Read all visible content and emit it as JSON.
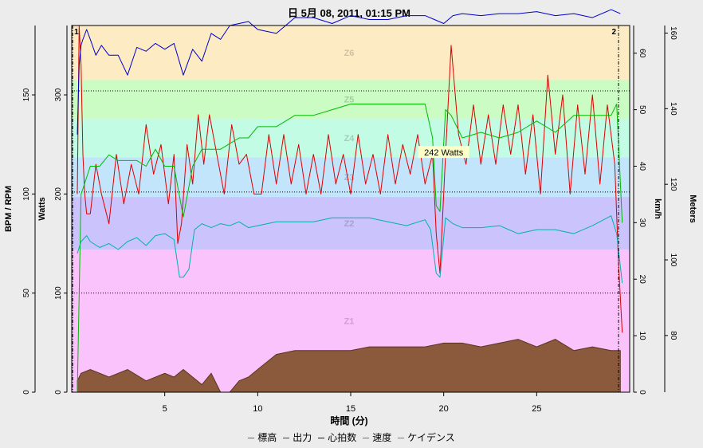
{
  "chart_data": {
    "type": "line",
    "title": "日 5月 08, 2011, 01:15 PM",
    "xlabel": "時間 (分)",
    "xlim": [
      0,
      30
    ],
    "x_ticks": [
      5,
      10,
      15,
      20,
      25
    ],
    "axes": {
      "bpm_rpm": {
        "label": "BPM / RPM",
        "ticks": [
          0,
          50,
          100,
          150
        ],
        "range": [
          0,
          185
        ]
      },
      "watts": {
        "label": "Watts",
        "ticks": [
          0,
          100,
          200,
          300
        ],
        "range": [
          0,
          370
        ]
      },
      "kmh": {
        "label": "km/h",
        "ticks": [
          0,
          10,
          20,
          30,
          40,
          50,
          60
        ],
        "range": [
          0,
          64.9
        ]
      },
      "meters": {
        "label": "Meters",
        "ticks": [
          80,
          100,
          120,
          140,
          160
        ],
        "range": [
          65,
          162
        ]
      }
    },
    "zones": [
      {
        "label": "Z1",
        "from": 0,
        "to": 144,
        "color": "#fbc3fc"
      },
      {
        "label": "Z2",
        "from": 144,
        "to": 197,
        "color": "#cbc3fc"
      },
      {
        "label": "Z3",
        "from": 197,
        "to": 237,
        "color": "#c3e5fc"
      },
      {
        "label": "Z4",
        "from": 237,
        "to": 276,
        "color": "#c3fce5"
      },
      {
        "label": "Z5",
        "from": 276,
        "to": 315,
        "color": "#cbfcc3"
      },
      {
        "label": "Z6",
        "from": 315,
        "to": 370,
        "color": "#fcebc3"
      }
    ],
    "reference_lines_watts": [
      100,
      202,
      304
    ],
    "interval_markers": [
      {
        "label": "1",
        "x": 0.05
      },
      {
        "label": "2",
        "x": 29.4
      }
    ],
    "annotation": {
      "text": "242 Watts",
      "x": 20.0,
      "y": 242
    },
    "grid": false,
    "legend_position": "bottom-center",
    "series": [
      {
        "name": "標高",
        "color": "#8b5a3c",
        "axis": "meters",
        "x": [
          0.3,
          0.5,
          1,
          2,
          3,
          4,
          5,
          5.5,
          6,
          6.5,
          7,
          7.5,
          8,
          8.5,
          9,
          9.5,
          10,
          11,
          12,
          13,
          14,
          15,
          16,
          17,
          18,
          19,
          20,
          21,
          22,
          23,
          24,
          25,
          26,
          27,
          28,
          29,
          29.5
        ],
        "y": [
          68,
          70,
          71,
          69,
          71,
          68,
          70,
          69,
          71,
          69,
          67,
          70,
          65,
          65,
          68,
          69,
          71,
          75,
          76,
          76,
          76,
          76,
          77,
          77,
          77,
          77,
          78,
          78,
          77,
          78,
          79,
          77,
          79,
          76,
          77,
          76,
          76
        ]
      },
      {
        "name": "出力",
        "color": "#dd0000",
        "axis": "watts",
        "x": [
          0.3,
          0.4,
          0.5,
          0.6,
          0.7,
          0.8,
          1,
          1.3,
          1.6,
          2,
          2.4,
          2.8,
          3.2,
          3.6,
          4,
          4.4,
          4.8,
          5.2,
          5.5,
          5.7,
          5.9,
          6.2,
          6.5,
          6.8,
          7.1,
          7.4,
          7.8,
          8.2,
          8.6,
          9,
          9.4,
          9.8,
          10.2,
          10.6,
          11,
          11.4,
          11.8,
          12.2,
          12.6,
          13,
          13.4,
          13.8,
          14.2,
          14.6,
          15,
          15.4,
          15.8,
          16.2,
          16.6,
          17,
          17.4,
          17.8,
          18.2,
          18.6,
          19,
          19.4,
          19.6,
          19.8,
          20.1,
          20.4,
          20.8,
          21.2,
          21.6,
          22,
          22.4,
          22.8,
          23.2,
          23.6,
          24,
          24.4,
          24.8,
          25.2,
          25.6,
          26,
          26.4,
          26.8,
          27.2,
          27.6,
          28,
          28.4,
          28.8,
          29.2,
          29.4,
          29.6
        ],
        "y": [
          200,
          370,
          330,
          240,
          200,
          180,
          180,
          230,
          200,
          170,
          240,
          190,
          230,
          200,
          270,
          220,
          250,
          190,
          240,
          150,
          170,
          250,
          210,
          280,
          230,
          280,
          240,
          200,
          270,
          230,
          240,
          200,
          200,
          260,
          210,
          260,
          210,
          250,
          200,
          240,
          200,
          260,
          210,
          240,
          200,
          260,
          210,
          240,
          200,
          260,
          210,
          250,
          220,
          260,
          210,
          240,
          160,
          120,
          240,
          350,
          260,
          230,
          290,
          230,
          280,
          230,
          290,
          240,
          290,
          220,
          280,
          200,
          320,
          240,
          300,
          200,
          290,
          220,
          300,
          210,
          290,
          230,
          130,
          60
        ]
      },
      {
        "name": "心拍数",
        "color": "#0000cc",
        "axis": "bpm_rpm",
        "x": [
          0.3,
          0.4,
          0.5,
          0.6,
          0.8,
          1,
          1.3,
          1.6,
          2,
          2.5,
          3,
          3.5,
          4,
          4.5,
          5,
          5.5,
          6,
          6.5,
          7,
          7.5,
          8,
          8.5,
          9,
          9.5,
          10,
          11,
          12,
          13,
          14,
          15,
          16,
          17,
          18,
          19,
          19.5,
          20,
          20.5,
          21,
          22,
          23,
          24,
          25,
          26,
          27,
          28,
          29,
          29.5
        ],
        "y": [
          130,
          165,
          175,
          178,
          183,
          178,
          170,
          175,
          170,
          170,
          160,
          174,
          172,
          176,
          173,
          176,
          160,
          173,
          167,
          181,
          178,
          185,
          186,
          187,
          183,
          181,
          189,
          189,
          186,
          190,
          188,
          188,
          190,
          190,
          188,
          186,
          190,
          191,
          190,
          191,
          191,
          192,
          190,
          191,
          189,
          193,
          191
        ]
      },
      {
        "name": "速度",
        "color": "#00bb00",
        "axis": "kmh",
        "x": [
          0.3,
          0.5,
          0.7,
          1,
          1.5,
          2,
          2.5,
          3,
          3.5,
          4,
          4.5,
          5,
          5.5,
          6,
          6.5,
          7,
          7.5,
          8,
          8.5,
          9,
          9.5,
          10,
          11,
          12,
          13,
          14,
          15,
          16,
          17,
          18,
          19,
          19.4,
          19.6,
          19.8,
          20.1,
          20.4,
          21,
          22,
          23,
          24,
          25,
          26,
          27,
          28,
          29,
          29.3,
          29.6
        ],
        "y": [
          0,
          35,
          37,
          40,
          40,
          42,
          41,
          41,
          41,
          40,
          43,
          40,
          40,
          31,
          40,
          43,
          43,
          43,
          44,
          45,
          45,
          47,
          47,
          49,
          49,
          50,
          51,
          51,
          51,
          51,
          51,
          45,
          33,
          32,
          50,
          49,
          45,
          46,
          45,
          46,
          48,
          46,
          49,
          49,
          49,
          51,
          30
        ]
      },
      {
        "name": "ケイデンス",
        "color": "#00b0b0",
        "axis": "bpm_rpm",
        "x": [
          0.3,
          0.5,
          0.8,
          1,
          1.5,
          2,
          2.5,
          3,
          3.5,
          4,
          4.5,
          5,
          5.5,
          5.8,
          6,
          6.3,
          6.6,
          7,
          7.5,
          8,
          8.5,
          9,
          9.5,
          10,
          11,
          12,
          13,
          14,
          15,
          16,
          17,
          18,
          19,
          19.3,
          19.6,
          19.8,
          20.1,
          20.5,
          21,
          22,
          23,
          24,
          25,
          26,
          27,
          28,
          29,
          29.3,
          29.6
        ],
        "y": [
          70,
          76,
          79,
          76,
          73,
          75,
          72,
          76,
          78,
          74,
          79,
          80,
          77,
          58,
          58,
          62,
          82,
          85,
          83,
          85,
          84,
          86,
          83,
          84,
          86,
          86,
          86,
          88,
          88,
          88,
          86,
          84,
          87,
          82,
          60,
          58,
          88,
          85,
          83,
          83,
          84,
          80,
          82,
          82,
          80,
          84,
          89,
          80,
          55
        ]
      }
    ]
  }
}
